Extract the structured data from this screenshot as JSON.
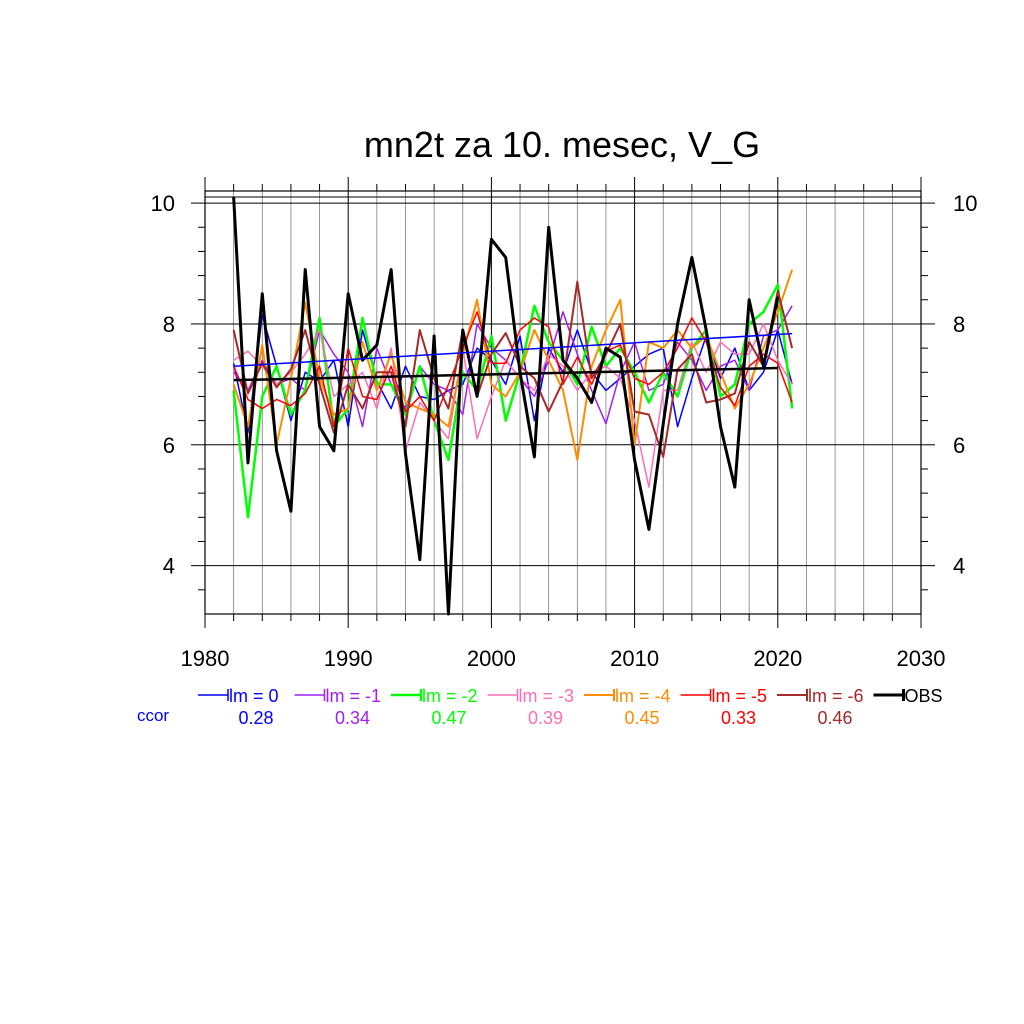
{
  "chart_data": {
    "type": "line",
    "title": "mn2t za 10. mesec, V_G",
    "xlabel": "",
    "ylabel": "",
    "xlim": [
      1980,
      2030
    ],
    "ylim": [
      3.2,
      10.2
    ],
    "x_ticks": [
      "1980",
      "1990",
      "2000",
      "2010",
      "2020",
      "2030"
    ],
    "y_ticks": [
      "4",
      "6",
      "8",
      "10"
    ],
    "y_ticks_right": [
      "4",
      "6",
      "8",
      "10"
    ],
    "grid": true,
    "legend_position": "bottom",
    "legend_row_label": "ccor",
    "x": [
      1982,
      1983,
      1984,
      1985,
      1986,
      1987,
      1988,
      1989,
      1990,
      1991,
      1992,
      1993,
      1994,
      1995,
      1996,
      1997,
      1998,
      1999,
      2000,
      2001,
      2002,
      2003,
      2004,
      2005,
      2006,
      2007,
      2008,
      2009,
      2010,
      2011,
      2012,
      2013,
      2014,
      2015,
      2016,
      2017,
      2018,
      2019,
      2020,
      2021
    ],
    "series": [
      {
        "name": "lm = 0",
        "ccor": "0.28",
        "color": "#0000ff",
        "width": 1.5,
        "values": [
          7.35,
          6.2,
          8.15,
          7.3,
          6.4,
          7.2,
          7.05,
          7.4,
          6.3,
          7.9,
          7.05,
          6.6,
          7.3,
          6.8,
          6.75,
          6.9,
          7.0,
          7.6,
          7.4,
          7.0,
          7.8,
          6.4,
          7.6,
          7.2,
          7.9,
          7.2,
          6.9,
          7.1,
          7.3,
          7.5,
          7.6,
          6.3,
          7.1,
          7.8,
          7.1,
          7.6,
          6.9,
          7.2,
          7.9,
          7.0
        ]
      },
      {
        "name": "lm = -1",
        "ccor": "0.34",
        "color": "#a020f0",
        "width": 1.5,
        "values": [
          7.2,
          6.9,
          7.4,
          7.0,
          7.1,
          6.9,
          7.9,
          7.5,
          7.2,
          6.3,
          7.6,
          7.0,
          6.6,
          7.3,
          7.0,
          6.9,
          6.5,
          8.0,
          7.6,
          7.4,
          7.1,
          6.8,
          7.4,
          8.2,
          7.5,
          6.9,
          6.35,
          7.2,
          7.7,
          6.9,
          7.0,
          7.7,
          7.4,
          6.9,
          7.3,
          7.4,
          6.9,
          7.8,
          7.9,
          8.3
        ]
      },
      {
        "name": "lm = -2",
        "ccor": "0.47",
        "color": "#00ff00",
        "width": 2.5,
        "values": [
          6.9,
          4.8,
          6.8,
          7.3,
          6.5,
          6.9,
          8.1,
          6.3,
          6.6,
          8.1,
          7.0,
          7.0,
          6.5,
          7.3,
          6.4,
          5.75,
          7.2,
          6.9,
          7.8,
          6.4,
          7.2,
          8.3,
          7.7,
          7.4,
          7.0,
          7.95,
          7.3,
          7.6,
          7.2,
          6.7,
          7.2,
          6.8,
          7.6,
          7.9,
          6.8,
          7.0,
          8.0,
          8.2,
          8.65,
          6.6
        ]
      },
      {
        "name": "lm = -3",
        "ccor": "0.39",
        "color": "#ff6eb4",
        "width": 1.5,
        "values": [
          7.4,
          7.55,
          7.3,
          7.0,
          7.2,
          7.5,
          7.9,
          6.8,
          7.0,
          7.2,
          6.6,
          7.6,
          5.9,
          6.7,
          6.4,
          6.1,
          7.6,
          6.1,
          6.8,
          7.4,
          7.1,
          6.9,
          7.5,
          7.3,
          6.9,
          7.2,
          7.3,
          7.1,
          6.4,
          5.3,
          6.9,
          6.9,
          7.7,
          7.2,
          7.7,
          7.5,
          7.5,
          8.0,
          7.4,
          7.0
        ]
      },
      {
        "name": "lm = -4",
        "ccor": "0.45",
        "color": "#ff8c00",
        "width": 2.0,
        "values": [
          7.0,
          6.3,
          7.65,
          6.0,
          7.1,
          8.35,
          7.1,
          6.5,
          6.6,
          7.7,
          6.9,
          7.5,
          6.7,
          6.6,
          6.5,
          6.3,
          7.5,
          8.4,
          7.0,
          6.8,
          7.2,
          7.9,
          7.4,
          6.9,
          5.75,
          7.3,
          7.9,
          8.4,
          6.0,
          7.7,
          7.6,
          7.9,
          7.6,
          7.8,
          7.2,
          6.6,
          7.0,
          7.6,
          8.2,
          8.9
        ]
      },
      {
        "name": "lm = -5",
        "ccor": "0.33",
        "color": "#ff0000",
        "width": 1.5,
        "values": [
          7.3,
          6.75,
          6.6,
          6.75,
          6.65,
          6.85,
          7.3,
          6.3,
          7.6,
          6.8,
          6.75,
          7.3,
          6.55,
          6.8,
          6.4,
          7.0,
          7.6,
          8.2,
          7.35,
          7.35,
          7.9,
          8.1,
          7.95,
          7.0,
          7.45,
          7.0,
          7.55,
          7.65,
          7.1,
          7.0,
          7.2,
          7.6,
          8.1,
          7.7,
          6.95,
          6.65,
          7.3,
          7.5,
          7.35,
          6.7
        ]
      },
      {
        "name": "lm = -6",
        "ccor": "0.46",
        "color": "#a52a2a",
        "width": 2.0,
        "values": [
          7.9,
          6.85,
          7.35,
          6.95,
          7.25,
          7.9,
          7.0,
          6.2,
          7.0,
          6.6,
          7.2,
          7.2,
          6.3,
          7.9,
          7.1,
          6.6,
          7.9,
          6.8,
          7.5,
          7.85,
          7.3,
          7.1,
          6.55,
          7.05,
          8.7,
          7.1,
          7.5,
          8.0,
          6.55,
          6.5,
          5.8,
          7.25,
          7.5,
          6.7,
          6.75,
          6.85,
          7.7,
          7.3,
          8.55,
          7.6
        ]
      },
      {
        "name": "OBS",
        "ccor": "",
        "color": "#000000",
        "width": 3.0,
        "values": [
          10.1,
          5.7,
          8.5,
          5.9,
          4.9,
          8.9,
          6.3,
          5.9,
          8.5,
          7.4,
          7.65,
          8.9,
          5.85,
          4.1,
          7.8,
          3.2,
          7.9,
          6.8,
          9.4,
          9.1,
          7.2,
          5.8,
          9.6,
          7.4,
          7.1,
          6.7,
          7.6,
          7.45,
          5.75,
          4.6,
          6.35,
          8.0,
          9.1,
          7.9,
          6.3,
          5.3,
          8.4,
          7.3,
          8.45,
          null
        ]
      }
    ],
    "trends": [
      {
        "name": "lm = 0 trend",
        "color": "#0000ff",
        "width": 1.5,
        "x": [
          1982,
          2021
        ],
        "y": [
          7.3,
          7.84
        ]
      },
      {
        "name": "OBS trend",
        "color": "#000000",
        "width": 2.5,
        "x": [
          1982,
          2020
        ],
        "y": [
          7.07,
          7.27
        ]
      }
    ]
  }
}
